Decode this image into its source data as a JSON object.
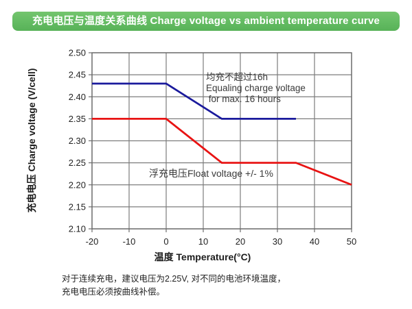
{
  "header": {
    "title": "充电电压与温度关系曲线 Charge voltage vs ambient temperature curve",
    "bg_color": "#63bb62",
    "text_color": "#ffffff"
  },
  "chart_data": {
    "type": "line",
    "title": "Charge voltage vs ambient temperature curve",
    "xlabel": "温度 Temperature(°C)",
    "ylabel": "充电电压 Charge voltage (V/cell)",
    "xlim": [
      -20,
      50
    ],
    "ylim": [
      2.1,
      2.5
    ],
    "x_ticks": [
      -20,
      -10,
      0,
      10,
      20,
      30,
      40,
      50
    ],
    "y_ticks": [
      2.5,
      2.45,
      2.4,
      2.35,
      2.3,
      2.25,
      2.2,
      2.15,
      2.1
    ],
    "grid": true,
    "grid_color": "#7c7c7c",
    "border_color": "#6b6b6b",
    "legend_position": "none",
    "series": [
      {
        "id": "equalize-charge",
        "name": "均充 Equaling charge voltage",
        "color": "#1a1a9c",
        "points": [
          [
            -20,
            2.43
          ],
          [
            0,
            2.43
          ],
          [
            15,
            2.35
          ],
          [
            35,
            2.35
          ]
        ]
      },
      {
        "id": "float-voltage",
        "name": "浮充 Float voltage",
        "color": "#e81313",
        "points": [
          [
            -20,
            2.35
          ],
          [
            0,
            2.35
          ],
          [
            15,
            2.25
          ],
          [
            35,
            2.25
          ],
          [
            50,
            2.2
          ]
        ]
      }
    ],
    "annotations": [
      {
        "id": "equalize-note",
        "text": "均充不超过16h\nEqualing charge voltage\n for max. 16 hours"
      },
      {
        "id": "float-note",
        "text": "浮充电压Float voltage +/- 1%"
      }
    ]
  },
  "footnote": "对于连续充电，建议电压为2.25V, 对不同的电池环境温度，\n充电电压必须按曲线补偿。"
}
